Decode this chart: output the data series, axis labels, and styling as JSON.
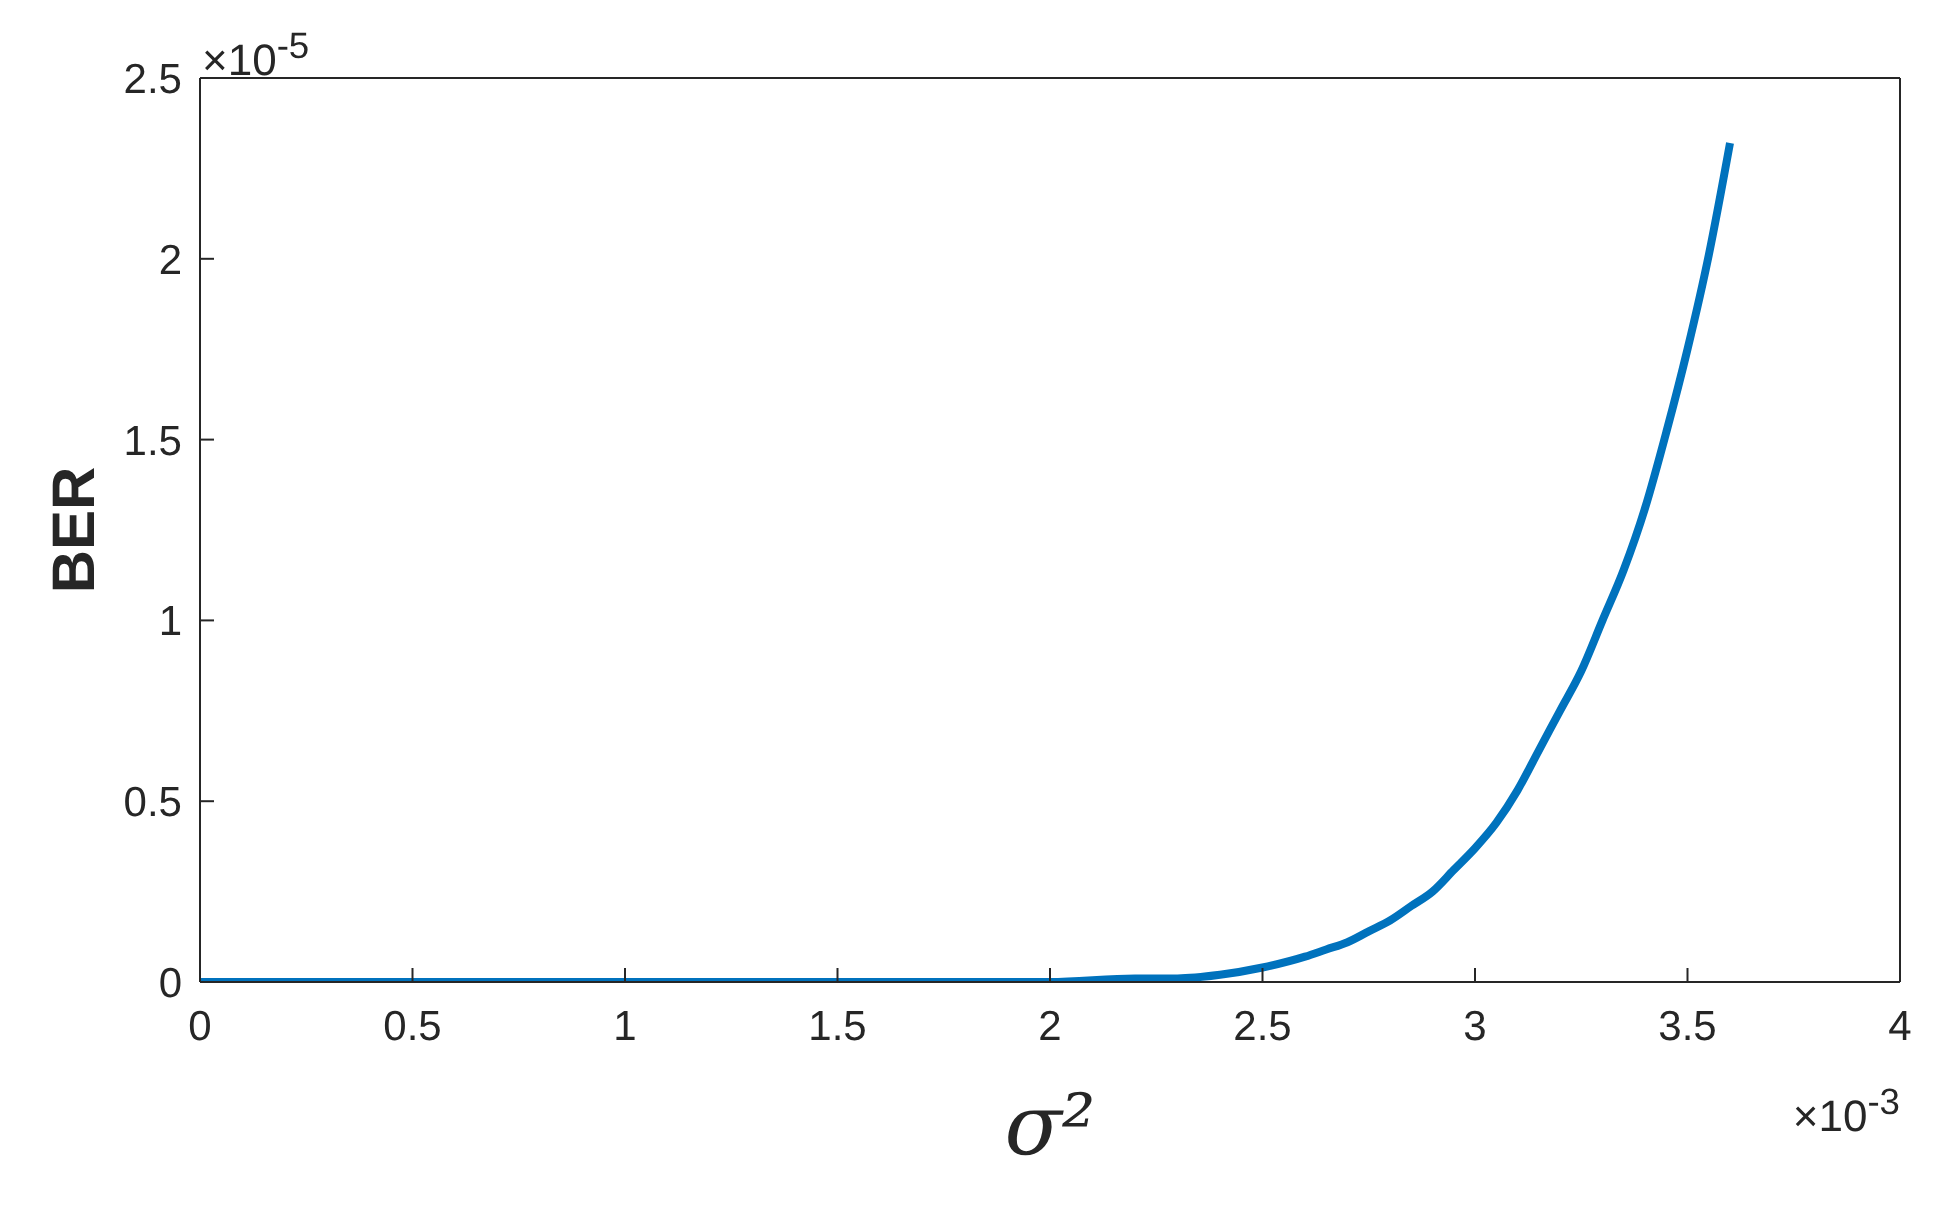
{
  "chart_data": {
    "type": "line",
    "xlabel": "σ²",
    "ylabel": "BER",
    "annotations": [
      "×10$^{-5}$",
      "×10$^{-3}$"
    ],
    "x": [
      0,
      0.5,
      1,
      1.5,
      2.0,
      2.2,
      2.3,
      2.4,
      2.5,
      2.6,
      2.65,
      2.7,
      2.75,
      2.8,
      2.85,
      2.9,
      2.95,
      3.0,
      3.05,
      3.1,
      3.15,
      3.2,
      3.25,
      3.3,
      3.35,
      3.4,
      3.45,
      3.5,
      3.55,
      3.6
    ],
    "values": [
      0,
      0,
      0,
      0,
      0,
      0.01,
      0.01,
      0.02,
      0.04,
      0.07,
      0.09,
      0.11,
      0.14,
      0.17,
      0.21,
      0.25,
      0.31,
      0.37,
      0.44,
      0.53,
      0.64,
      0.75,
      0.86,
      1.0,
      1.14,
      1.31,
      1.52,
      1.75,
      2.01,
      2.32
    ],
    "color": "#0072bd",
    "xlim": [
      0,
      4
    ],
    "ylim": [
      0,
      2.5
    ],
    "xticks": [
      0,
      0.5,
      1,
      1.5,
      2,
      2.5,
      3,
      3.5,
      4
    ],
    "yticks": [
      0,
      0.5,
      1,
      1.5,
      2,
      2.5
    ]
  }
}
